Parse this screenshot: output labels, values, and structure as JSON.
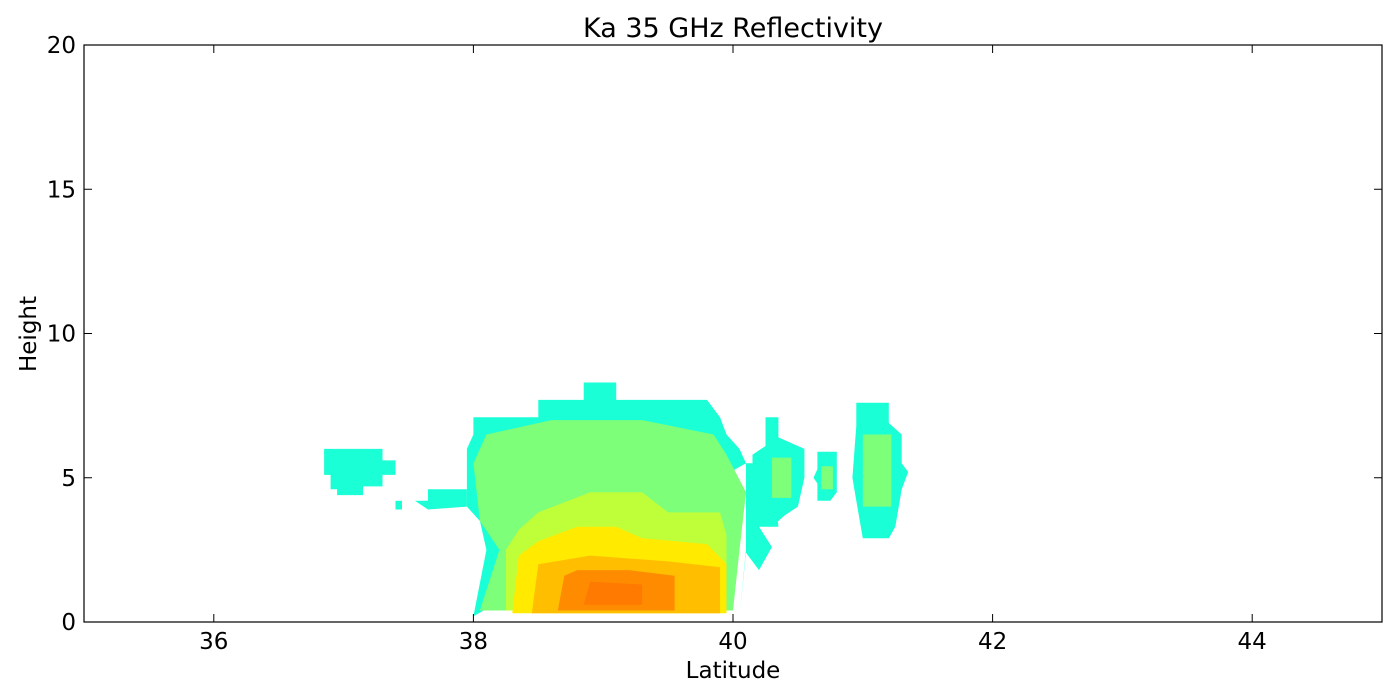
{
  "chart_data": {
    "type": "heatmap",
    "title": "Ka 35 GHz Reflectivity",
    "xlabel": "Latitude",
    "ylabel": "Height",
    "xlim": [
      35,
      45
    ],
    "ylim": [
      0,
      20
    ],
    "x_ticks": [
      36,
      38,
      40,
      42,
      44
    ],
    "y_ticks": [
      0,
      5,
      10,
      15,
      20
    ],
    "x_tick_labels": [
      "36",
      "38",
      "40",
      "42",
      "44"
    ],
    "y_tick_labels": [
      "0",
      "5",
      "10",
      "15",
      "20"
    ],
    "grid": false,
    "colormap": "jet",
    "colors": {
      "cyan": "#1affd5",
      "light_green": "#7dff7a",
      "yellow_green": "#bfff3a",
      "yellow": "#ffea00",
      "orange_yellow": "#ffbf00",
      "orange": "#ff8c00",
      "dark_orange": "#ff7a00"
    },
    "regions": [
      {
        "name": "band-cyan-outer",
        "color": "cyan",
        "polygon": [
          [
            38.0,
            0.2
          ],
          [
            40.05,
            0.2
          ],
          [
            40.1,
            2.5
          ],
          [
            40.1,
            5.5
          ],
          [
            40.3,
            5.5
          ],
          [
            40.35,
            3.3
          ],
          [
            40.2,
            3.3
          ],
          [
            40.3,
            2.6
          ],
          [
            40.2,
            1.8
          ],
          [
            40.1,
            2.4
          ],
          [
            40.05,
            0.2
          ],
          [
            38.0,
            0.2
          ],
          [
            38.1,
            2.5
          ],
          [
            38.05,
            3.5
          ],
          [
            37.95,
            4.0
          ],
          [
            37.95,
            6.0
          ],
          [
            38.0,
            6.5
          ],
          [
            38.0,
            7.1
          ],
          [
            38.5,
            7.1
          ],
          [
            38.5,
            7.7
          ],
          [
            38.85,
            7.7
          ],
          [
            38.85,
            8.3
          ],
          [
            39.1,
            8.3
          ],
          [
            39.1,
            7.7
          ],
          [
            39.8,
            7.7
          ],
          [
            39.9,
            7.1
          ],
          [
            39.95,
            6.5
          ],
          [
            40.05,
            6.0
          ],
          [
            40.1,
            5.5
          ]
        ]
      },
      {
        "name": "band-light-green",
        "color": "light_green",
        "polygon": [
          [
            38.05,
            0.4
          ],
          [
            40.0,
            0.4
          ],
          [
            40.05,
            2.5
          ],
          [
            40.1,
            4.5
          ],
          [
            39.95,
            5.8
          ],
          [
            39.85,
            6.5
          ],
          [
            39.3,
            7.0
          ],
          [
            38.6,
            7.0
          ],
          [
            38.1,
            6.5
          ],
          [
            38.0,
            5.5
          ],
          [
            38.05,
            3.5
          ],
          [
            38.2,
            2.5
          ]
        ]
      },
      {
        "name": "band-yellow-green",
        "color": "yellow_green",
        "polygon": [
          [
            38.25,
            0.4
          ],
          [
            39.95,
            0.4
          ],
          [
            39.95,
            3.0
          ],
          [
            39.9,
            3.8
          ],
          [
            39.5,
            3.8
          ],
          [
            39.3,
            4.5
          ],
          [
            38.9,
            4.5
          ],
          [
            38.5,
            3.8
          ],
          [
            38.35,
            3.2
          ],
          [
            38.25,
            2.5
          ]
        ]
      },
      {
        "name": "band-yellow",
        "color": "yellow",
        "polygon": [
          [
            38.3,
            0.3
          ],
          [
            39.95,
            0.3
          ],
          [
            39.95,
            2.0
          ],
          [
            39.8,
            2.7
          ],
          [
            39.3,
            2.9
          ],
          [
            39.1,
            3.3
          ],
          [
            38.8,
            3.3
          ],
          [
            38.5,
            2.8
          ],
          [
            38.35,
            2.3
          ]
        ]
      },
      {
        "name": "band-orange-yellow",
        "color": "orange_yellow",
        "polygon": [
          [
            38.45,
            0.3
          ],
          [
            39.9,
            0.3
          ],
          [
            39.9,
            1.9
          ],
          [
            39.5,
            2.1
          ],
          [
            38.9,
            2.3
          ],
          [
            38.5,
            2.0
          ]
        ]
      },
      {
        "name": "band-orange",
        "color": "orange",
        "polygon": [
          [
            38.65,
            0.4
          ],
          [
            39.55,
            0.4
          ],
          [
            39.55,
            1.6
          ],
          [
            39.2,
            1.8
          ],
          [
            38.8,
            1.8
          ],
          [
            38.7,
            1.6
          ]
        ]
      },
      {
        "name": "band-dark-orange",
        "color": "dark_orange",
        "polygon": [
          [
            38.85,
            0.6
          ],
          [
            39.3,
            0.6
          ],
          [
            39.3,
            1.3
          ],
          [
            38.9,
            1.4
          ]
        ]
      },
      {
        "name": "cell-cyan-37",
        "color": "cyan",
        "polygon": [
          [
            36.85,
            6.0
          ],
          [
            37.3,
            6.0
          ],
          [
            37.3,
            5.6
          ],
          [
            37.4,
            5.6
          ],
          [
            37.4,
            5.1
          ],
          [
            37.3,
            5.1
          ],
          [
            37.3,
            4.7
          ],
          [
            37.15,
            4.7
          ],
          [
            37.15,
            4.4
          ],
          [
            36.95,
            4.4
          ],
          [
            36.95,
            4.6
          ],
          [
            36.9,
            4.6
          ],
          [
            36.9,
            5.1
          ],
          [
            36.85,
            5.1
          ]
        ]
      },
      {
        "name": "cell-cyan-376",
        "color": "cyan",
        "polygon": [
          [
            37.65,
            4.6
          ],
          [
            37.95,
            4.6
          ],
          [
            37.95,
            4.0
          ],
          [
            37.65,
            3.9
          ],
          [
            37.55,
            4.2
          ],
          [
            37.65,
            4.2
          ]
        ]
      },
      {
        "name": "cell-cyan-374",
        "color": "cyan",
        "polygon": [
          [
            37.4,
            4.2
          ],
          [
            37.45,
            4.2
          ],
          [
            37.45,
            3.9
          ],
          [
            37.4,
            3.9
          ]
        ]
      },
      {
        "name": "cell-cyan-405",
        "color": "cyan",
        "polygon": [
          [
            40.25,
            7.1
          ],
          [
            40.35,
            7.1
          ],
          [
            40.35,
            6.4
          ],
          [
            40.55,
            6.0
          ],
          [
            40.55,
            5.0
          ],
          [
            40.5,
            4.0
          ],
          [
            40.4,
            3.7
          ],
          [
            40.3,
            3.3
          ],
          [
            40.25,
            4.0
          ],
          [
            40.15,
            5.0
          ],
          [
            40.15,
            5.8
          ],
          [
            40.25,
            6.1
          ]
        ]
      },
      {
        "name": "cell-green-405",
        "color": "light_green",
        "polygon": [
          [
            40.3,
            5.7
          ],
          [
            40.45,
            5.7
          ],
          [
            40.45,
            4.3
          ],
          [
            40.3,
            4.3
          ]
        ]
      },
      {
        "name": "cell-cyan-407",
        "color": "cyan",
        "polygon": [
          [
            40.65,
            5.9
          ],
          [
            40.8,
            5.9
          ],
          [
            40.8,
            4.5
          ],
          [
            40.75,
            4.2
          ],
          [
            40.65,
            4.2
          ],
          [
            40.65,
            4.8
          ],
          [
            40.62,
            5.0
          ],
          [
            40.65,
            5.3
          ]
        ]
      },
      {
        "name": "cell-green-407",
        "color": "light_green",
        "polygon": [
          [
            40.68,
            5.4
          ],
          [
            40.77,
            5.4
          ],
          [
            40.77,
            4.6
          ],
          [
            40.68,
            4.6
          ]
        ]
      },
      {
        "name": "cell-cyan-411",
        "color": "cyan",
        "polygon": [
          [
            40.95,
            7.6
          ],
          [
            41.2,
            7.6
          ],
          [
            41.2,
            6.9
          ],
          [
            41.3,
            6.5
          ],
          [
            41.3,
            5.5
          ],
          [
            41.35,
            5.2
          ],
          [
            41.3,
            4.6
          ],
          [
            41.25,
            3.3
          ],
          [
            41.2,
            2.9
          ],
          [
            41.0,
            2.9
          ],
          [
            40.95,
            4.2
          ],
          [
            40.92,
            5.0
          ],
          [
            40.95,
            6.8
          ]
        ]
      },
      {
        "name": "cell-green-411",
        "color": "light_green",
        "polygon": [
          [
            41.0,
            6.5
          ],
          [
            41.22,
            6.5
          ],
          [
            41.22,
            4.0
          ],
          [
            41.0,
            4.0
          ]
        ]
      }
    ]
  }
}
